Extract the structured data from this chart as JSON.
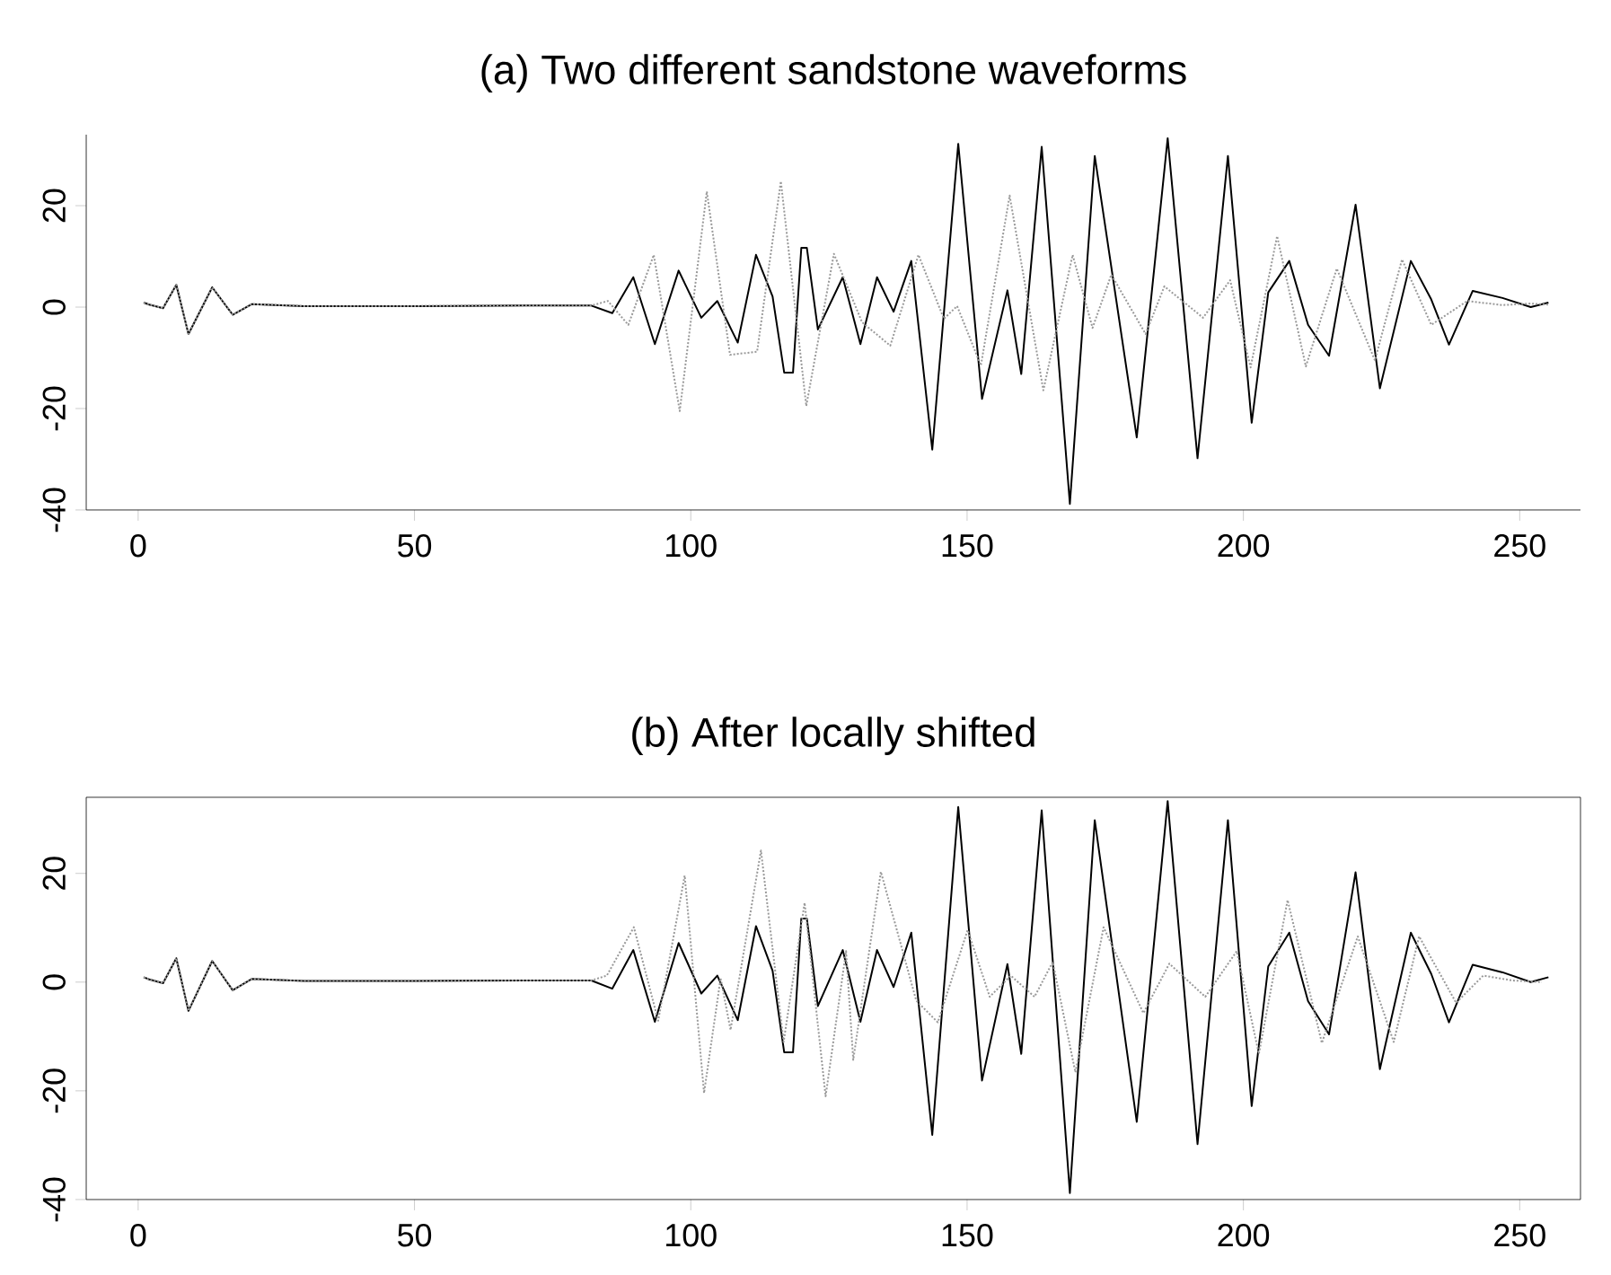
{
  "chart_data": [
    {
      "type": "line",
      "title": "(a) Two different sandstone waveforms",
      "xlim": [
        -9.4,
        261
      ],
      "ylim": [
        -40,
        34
      ],
      "xticks": [
        0,
        50,
        100,
        150,
        200,
        250
      ],
      "yticks": [
        -40,
        -20,
        0,
        20
      ],
      "series": [
        {
          "color": "#000000",
          "line_style": "solid",
          "x": [
            1,
            2,
            4.5,
            6.9,
            9.1,
            13.4,
            17.1,
            20.6,
            30,
            50,
            70,
            82,
            85.8,
            89.6,
            93.5,
            97.8,
            101.9,
            104.8,
            108.5,
            111.8,
            114.8,
            116.9,
            118.5,
            120,
            121,
            123,
            127.5,
            130.7,
            133.7,
            136.7,
            139.9,
            143.7,
            148.4,
            152.7,
            157.3,
            159.8,
            163.5,
            168.6,
            173.1,
            180.7,
            186.3,
            191.7,
            197.2,
            201.5,
            204.5,
            208.3,
            211.7,
            215.5,
            220.3,
            224.7,
            230.3,
            234,
            237.2,
            241.5,
            246.9,
            252,
            255.2
          ],
          "values": [
            0.9,
            0.5,
            -0.2,
            4.4,
            -5.3,
            3.9,
            -1.5,
            0.6,
            0.2,
            0.2,
            0.3,
            0.3,
            -1.2,
            5.9,
            -7.3,
            7.2,
            -2.1,
            1.2,
            -7,
            10.3,
            2.1,
            -12.9,
            -12.9,
            11.7,
            11.7,
            -4.4,
            5.9,
            -7.3,
            5.9,
            -0.9,
            9.1,
            -28.1,
            32.2,
            -18.1,
            3.3,
            -13.2,
            31.6,
            -38.8,
            29.8,
            -25.7,
            33.3,
            -29.8,
            29.8,
            -22.8,
            2.9,
            9.1,
            -3.5,
            -9.6,
            20.2,
            -16,
            9.1,
            1.5,
            -7.4,
            3.2,
            1.8,
            0,
            0.9
          ]
        },
        {
          "color": "#999999",
          "line_style": "dotted",
          "x": [
            1,
            2,
            4.5,
            6.9,
            9.1,
            13.4,
            17.1,
            20.6,
            30,
            50,
            70,
            82,
            85,
            88.7,
            93.3,
            98,
            102.9,
            107.1,
            112,
            116.3,
            120.9,
            125.9,
            131,
            136.1,
            141.2,
            145.8,
            148.2,
            152.5,
            157.7,
            163.8,
            169.1,
            172.7,
            176.1,
            182.3,
            185.7,
            192.7,
            197.6,
            201.3,
            206.1,
            211.3,
            216.9,
            223.8,
            228.7,
            234,
            240.5,
            246.9,
            252,
            255.2
          ],
          "values": [
            0.9,
            0.5,
            -0.2,
            4.4,
            -5.3,
            3.9,
            -1.5,
            0.6,
            0.2,
            0.2,
            0.3,
            0.3,
            1.2,
            -3.5,
            10.3,
            -20.5,
            22.8,
            -9.4,
            -8.8,
            24.8,
            -19.5,
            10.5,
            -3,
            -7.6,
            10.3,
            -2.3,
            0.2,
            -11.5,
            22,
            -16.4,
            10.3,
            -4.1,
            6.4,
            -5.3,
            4.1,
            -2.1,
            5.3,
            -11.9,
            14,
            -11.7,
            7.6,
            -10.5,
            9.4,
            -3.5,
            1.2,
            0.4,
            0.7,
            0.5
          ]
        }
      ]
    },
    {
      "type": "line",
      "title": "(b) After locally shifted",
      "xlim": [
        -9.4,
        261
      ],
      "ylim": [
        -40,
        34
      ],
      "xticks": [
        0,
        50,
        100,
        150,
        200,
        250
      ],
      "yticks": [
        -40,
        -20,
        0,
        20
      ],
      "series": [
        {
          "color": "#000000",
          "line_style": "solid",
          "x": [
            1,
            2,
            4.5,
            6.9,
            9.1,
            13.4,
            17.1,
            20.6,
            30,
            50,
            70,
            82,
            85.8,
            89.6,
            93.5,
            97.8,
            101.9,
            104.8,
            108.5,
            111.8,
            114.8,
            116.9,
            118.5,
            120,
            121,
            123,
            127.5,
            130.7,
            133.7,
            136.7,
            139.9,
            143.7,
            148.4,
            152.7,
            157.3,
            159.8,
            163.5,
            168.6,
            173.1,
            180.7,
            186.3,
            191.7,
            197.2,
            201.5,
            204.5,
            208.3,
            211.7,
            215.5,
            220.3,
            224.7,
            230.3,
            234,
            237.2,
            241.5,
            246.9,
            252,
            255.2
          ],
          "values": [
            0.9,
            0.5,
            -0.2,
            4.4,
            -5.3,
            3.9,
            -1.5,
            0.6,
            0.2,
            0.2,
            0.3,
            0.3,
            -1.2,
            5.9,
            -7.3,
            7.2,
            -2.1,
            1.2,
            -7,
            10.3,
            2.1,
            -12.9,
            -12.9,
            11.7,
            11.7,
            -4.4,
            5.9,
            -7.3,
            5.9,
            -0.9,
            9.1,
            -28.1,
            32.2,
            -18.1,
            3.3,
            -13.2,
            31.6,
            -38.8,
            29.8,
            -25.7,
            33.3,
            -29.8,
            29.8,
            -22.8,
            2.9,
            9.1,
            -3.5,
            -9.6,
            20.2,
            -16,
            9.1,
            1.5,
            -7.4,
            3.2,
            1.8,
            0,
            0.9
          ]
        },
        {
          "color": "#999999",
          "line_style": "dotted",
          "x": [
            1,
            2,
            4.5,
            6.9,
            9.1,
            13.4,
            17.1,
            20.6,
            30,
            50,
            70,
            82,
            84.8,
            89.7,
            94.1,
            98.9,
            102.4,
            105.4,
            107.2,
            112.7,
            116.8,
            120.6,
            124.4,
            128.1,
            129.4,
            134.4,
            140.8,
            144.7,
            150.1,
            154.1,
            157.9,
            162.2,
            165.5,
            169.6,
            174.7,
            181.9,
            186.6,
            193.1,
            198.8,
            202.8,
            208,
            214.2,
            220.7,
            227.2,
            231.8,
            238.5,
            243.4,
            248.7,
            254
          ],
          "values": [
            0.9,
            0.5,
            -0.2,
            4.4,
            -5.3,
            3.9,
            -1.5,
            0.6,
            0.2,
            0.2,
            0.3,
            0.3,
            1.2,
            10.1,
            -7.1,
            19.6,
            -20.4,
            0.7,
            -8.8,
            24.2,
            -11,
            14.6,
            -21,
            5.7,
            -14.3,
            20.3,
            -3.4,
            -7.4,
            9.6,
            -2.7,
            1.2,
            -2.7,
            3.7,
            -16.6,
            10.1,
            -5.7,
            3.4,
            -2.7,
            5.7,
            -13.2,
            15.1,
            -11.2,
            8.4,
            -11,
            8.4,
            -3.8,
            1.2,
            0.3,
            0
          ]
        }
      ]
    }
  ]
}
